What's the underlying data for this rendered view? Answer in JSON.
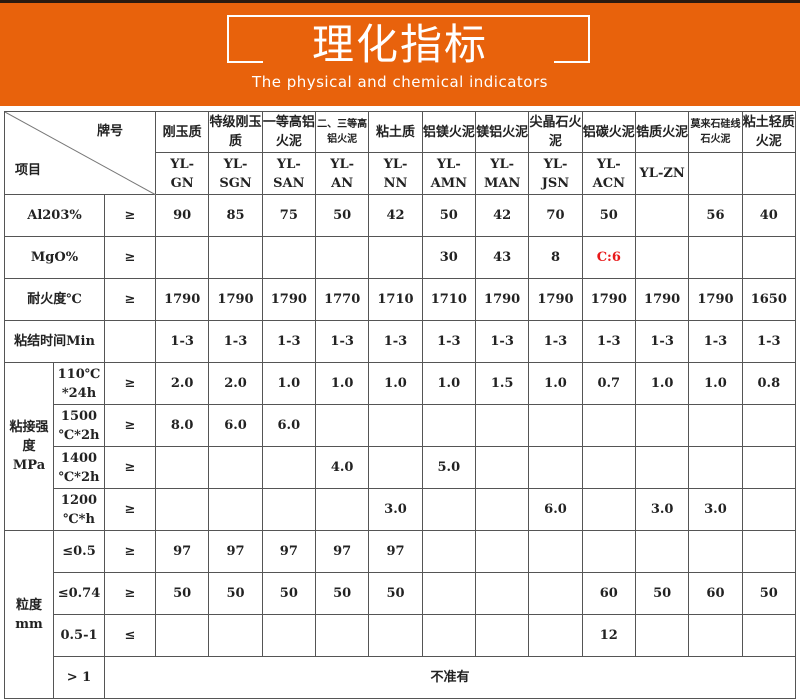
{
  "header": {
    "title": "理化指标",
    "subtitle": "The physical and chemical indicators",
    "accent": "#e8620c"
  },
  "table": {
    "corner": {
      "brand": "牌号",
      "item": "项目"
    },
    "products": [
      {
        "name": "刚玉质",
        "code": "YL-\nGN"
      },
      {
        "name": "特级刚玉质",
        "code": "YL-\nSGN"
      },
      {
        "name": "一等高铝火泥",
        "code": "YL-\nSAN"
      },
      {
        "name": "二、三等高铝火泥",
        "code": "YL-\nAN",
        "small": true
      },
      {
        "name": "粘土质",
        "code": "YL-\nNN"
      },
      {
        "name": "铝镁火泥",
        "code": "YL-\nAMN"
      },
      {
        "name": "镁铝火泥",
        "code": "YL-\nMAN"
      },
      {
        "name": "尖晶石火泥",
        "code": "YL-\nJSN"
      },
      {
        "name": "铝碳火泥",
        "code": "YL-\nACN"
      },
      {
        "name": "锆质火泥",
        "code": "YL-ZN"
      },
      {
        "name": "莫来石硅线石火泥",
        "code": "",
        "small": true
      },
      {
        "name": "粘土轻质火泥",
        "code": ""
      }
    ],
    "rows": [
      {
        "label": "Al203%",
        "op": "≥",
        "values": [
          "90",
          "85",
          "75",
          "50",
          "42",
          "50",
          "42",
          "70",
          "50",
          "",
          "56",
          "40"
        ]
      },
      {
        "label": "MgO%",
        "op": "≥",
        "values": [
          "",
          "",
          "",
          "",
          "",
          "30",
          "43",
          "8",
          "C:6",
          "",
          "",
          ""
        ],
        "red_index": 8
      },
      {
        "label": "耐火度℃",
        "op": "≥",
        "values": [
          "1790",
          "1790",
          "1790",
          "1770",
          "1710",
          "1710",
          "1790",
          "1790",
          "1790",
          "1790",
          "1790",
          "1650"
        ]
      },
      {
        "label": "粘结时间Min",
        "op": "",
        "values": [
          "1-3",
          "1-3",
          "1-3",
          "1-3",
          "1-3",
          "1-3",
          "1-3",
          "1-3",
          "1-3",
          "1-3",
          "1-3",
          "1-3"
        ]
      }
    ],
    "strength": {
      "label": "粘接强度\nMPa",
      "rows": [
        {
          "label": "110℃\n*24h",
          "op": "≥",
          "values": [
            "2.0",
            "2.0",
            "1.0",
            "1.0",
            "1.0",
            "1.0",
            "1.5",
            "1.0",
            "0.7",
            "1.0",
            "1.0",
            "0.8"
          ]
        },
        {
          "label": "1500\n℃*2h",
          "op": "≥",
          "values": [
            "8.0",
            "6.0",
            "6.0",
            "",
            "",
            "",
            "",
            "",
            "",
            "",
            "",
            ""
          ]
        },
        {
          "label": "1400\n℃*2h",
          "op": "≥",
          "values": [
            "",
            "",
            "",
            "4.0",
            "",
            "5.0",
            "",
            "",
            "",
            "",
            "",
            ""
          ]
        },
        {
          "label": "1200\n℃*h",
          "op": "≥",
          "values": [
            "",
            "",
            "",
            "",
            "3.0",
            "",
            "",
            "6.0",
            "",
            "3.0",
            "3.0",
            ""
          ]
        }
      ]
    },
    "granularity": {
      "label": "粒度\nmm",
      "rows": [
        {
          "label": "≤0.5",
          "op": "≥",
          "values": [
            "97",
            "97",
            "97",
            "97",
            "97",
            "",
            "",
            "",
            "",
            "",
            "",
            ""
          ]
        },
        {
          "label": "≤0.74",
          "op": "≥",
          "values": [
            "50",
            "50",
            "50",
            "50",
            "50",
            "",
            "",
            "",
            "60",
            "50",
            "60",
            "50"
          ]
        },
        {
          "label": "0.5-1",
          "op": "≤",
          "values": [
            "",
            "",
            "",
            "",
            "",
            "",
            "",
            "",
            "12",
            "",
            "",
            ""
          ]
        }
      ],
      "last": {
        "label": "> 1",
        "value": "不准有"
      }
    }
  }
}
